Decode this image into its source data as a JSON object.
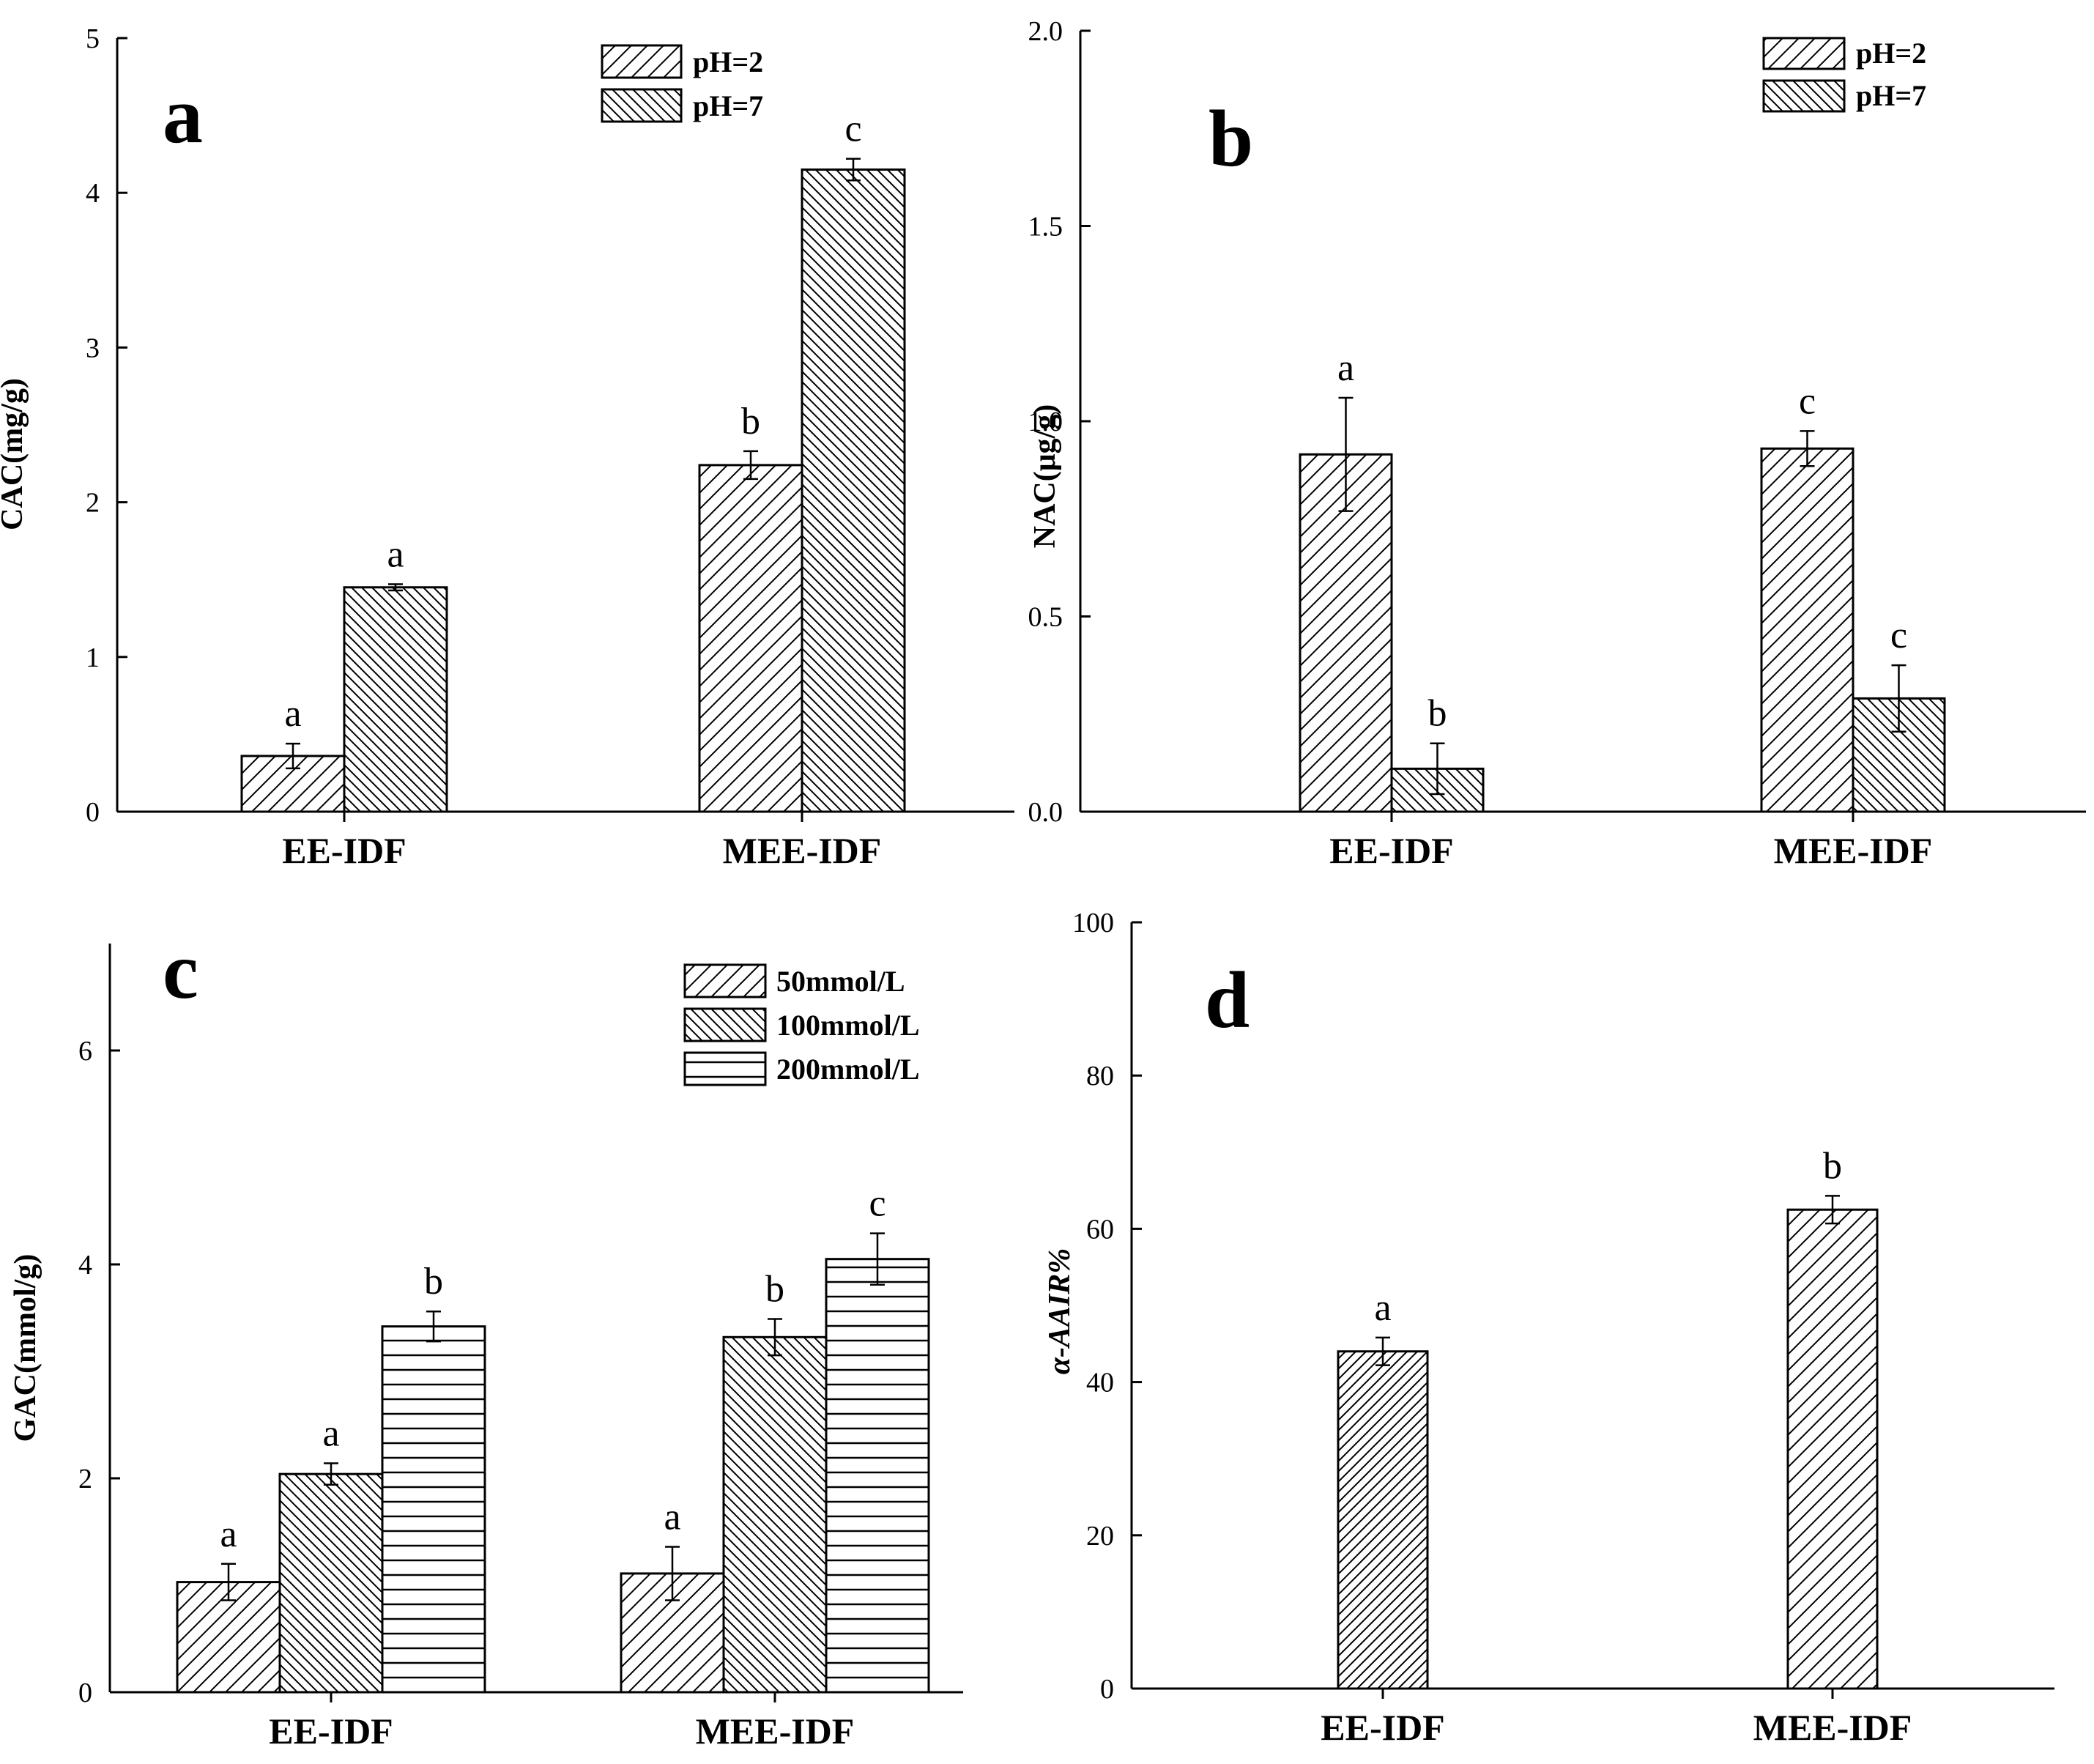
{
  "figure_title": "",
  "chart_data": [
    {
      "panel": "a",
      "type": "bar",
      "categories": [
        "EE-IDF",
        "MEE-IDF"
      ],
      "ylabel": "CAC(mg/g)",
      "xlabel": "",
      "ylim": [
        0,
        5
      ],
      "yticks": [
        "0",
        "1",
        "2",
        "3",
        "4",
        "5"
      ],
      "legend_position": "top-right",
      "series": [
        {
          "name": "pH=2",
          "pattern": "hatch-forward",
          "values": [
            0.36,
            2.24
          ],
          "errors": [
            0.08,
            0.09
          ],
          "labels": [
            "a",
            "b"
          ]
        },
        {
          "name": "pH=7",
          "pattern": "hatch-back",
          "values": [
            1.45,
            4.15
          ],
          "errors": [
            0.02,
            0.07
          ],
          "labels": [
            "a",
            "c"
          ]
        }
      ]
    },
    {
      "panel": "b",
      "type": "bar",
      "categories": [
        "EE-IDF",
        "MEE-IDF"
      ],
      "ylabel": "NAC(μg/g)",
      "xlabel": "",
      "ylim": [
        0,
        2
      ],
      "yticks": [
        "0.0",
        "0.5",
        "1.0",
        "1.5",
        "2.0"
      ],
      "legend_position": "top-right",
      "series": [
        {
          "name": "pH=2",
          "pattern": "hatch-forward",
          "values": [
            0.915,
            0.93
          ],
          "errors": [
            0.145,
            0.045
          ],
          "labels": [
            "a",
            "c"
          ]
        },
        {
          "name": "pH=7",
          "pattern": "hatch-back",
          "values": [
            0.11,
            0.29
          ],
          "errors": [
            0.065,
            0.085
          ],
          "labels": [
            "b",
            "c"
          ]
        }
      ]
    },
    {
      "panel": "c",
      "type": "bar",
      "categories": [
        "EE-IDF",
        "MEE-IDF"
      ],
      "ylabel": "GAC(mmol/g)",
      "xlabel": "",
      "ylim": [
        0,
        7
      ],
      "yticks": [
        "0",
        "2",
        "4",
        "6"
      ],
      "legend_position": "top-right",
      "series": [
        {
          "name": "50mmol/L",
          "pattern": "hatch-forward",
          "values": [
            1.03,
            1.11
          ],
          "errors": [
            0.17,
            0.25
          ],
          "labels": [
            "a",
            "a"
          ]
        },
        {
          "name": "100mmol/L",
          "pattern": "hatch-back",
          "values": [
            2.04,
            3.32
          ],
          "errors": [
            0.1,
            0.17
          ],
          "labels": [
            "a",
            "b"
          ]
        },
        {
          "name": "200mmol/L",
          "pattern": "horizontal",
          "values": [
            3.42,
            4.05
          ],
          "errors": [
            0.14,
            0.24
          ],
          "labels": [
            "b",
            "c"
          ]
        }
      ]
    },
    {
      "panel": "d",
      "type": "bar",
      "categories": [
        "EE-IDF",
        "MEE-IDF"
      ],
      "ylabel": "α-AAIR%",
      "xlabel": "",
      "ylim": [
        0,
        100
      ],
      "yticks": [
        "0",
        "20",
        "40",
        "60",
        "80",
        "100"
      ],
      "legend_position": "none",
      "series": [
        {
          "name": "α-AAIR%",
          "pattern": "per-bar",
          "bar_patterns": [
            "hatch-forward-dense",
            "hatch-forward"
          ],
          "values": [
            44,
            62.5
          ],
          "errors": [
            1.8,
            1.8
          ],
          "labels": [
            "a",
            "b"
          ]
        }
      ]
    }
  ]
}
